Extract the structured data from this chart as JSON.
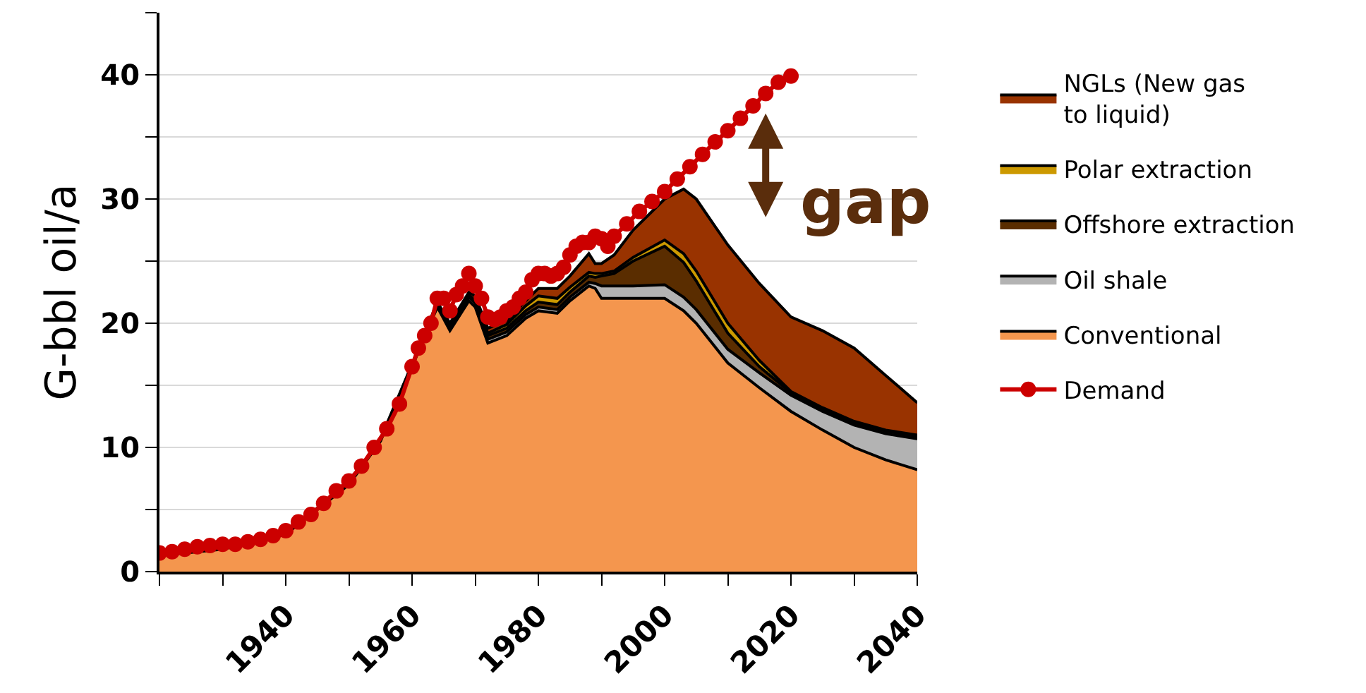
{
  "chart_data": {
    "type": "area",
    "stacked": true,
    "ylabel": "G-bbl oil/a",
    "x": [
      1920,
      1930,
      1940,
      1950,
      1955,
      1960,
      1964,
      1966,
      1969,
      1970,
      1972,
      1975,
      1978,
      1980,
      1983,
      1985,
      1988,
      1989,
      1990,
      1992,
      1995,
      2000,
      2003,
      2005,
      2010,
      2015,
      2020,
      2025,
      2030,
      2035,
      2040
    ],
    "series": [
      {
        "name": "Conventional",
        "color": "#f4964e",
        "values": [
          1.3,
          1.8,
          3.0,
          7.0,
          10.5,
          16.5,
          21.3,
          19.4,
          21.8,
          21.3,
          18.4,
          19,
          20.4,
          21,
          20.8,
          21.8,
          23,
          22.8,
          22,
          22,
          22,
          22,
          21,
          20,
          16.8,
          14.8,
          12.9,
          11.4,
          10,
          9,
          8.2
        ]
      },
      {
        "name": "Oil shale",
        "color": "#b3b3b3",
        "values": [
          0.1,
          0.1,
          0.1,
          0.1,
          0.1,
          0.1,
          0.2,
          0.2,
          0.3,
          0.3,
          0.3,
          0.3,
          0.3,
          0.3,
          0.3,
          0.3,
          0.3,
          0.4,
          1.0,
          1.0,
          1.0,
          1.1,
          1.1,
          1.1,
          1.1,
          1.2,
          1.3,
          1.5,
          1.8,
          2.1,
          2.5
        ]
      },
      {
        "name": "Offshore extraction",
        "color": "#5a2d00",
        "values": [
          0,
          0,
          0,
          0,
          0,
          0,
          0.1,
          0.1,
          0.2,
          0.2,
          0.3,
          0.3,
          0.3,
          0.4,
          0.4,
          0.4,
          0.5,
          0.5,
          0.8,
          1.0,
          2.0,
          3.1,
          2.8,
          2.3,
          1.3,
          0.5,
          0.2,
          0.2,
          0.2,
          0.2,
          0.2
        ]
      },
      {
        "name": "Polar extraction",
        "color": "#cc9900",
        "values": [
          0,
          0,
          0,
          0,
          0,
          0,
          0,
          0,
          0,
          0,
          0.2,
          0.3,
          0.4,
          0.5,
          0.5,
          0.4,
          0.3,
          0.3,
          0.2,
          0.2,
          0.3,
          0.5,
          0.7,
          0.8,
          0.8,
          0.5,
          0.1,
          0.1,
          0.1,
          0.1,
          0.1
        ]
      },
      {
        "name": "NGLs (New gas\nto liquid)",
        "color": "#993300",
        "values": [
          0,
          0,
          0,
          0,
          0.1,
          0.1,
          0.1,
          0.3,
          0.2,
          0.4,
          0.4,
          0.3,
          0.4,
          0.6,
          0.8,
          0.9,
          1.5,
          0.8,
          0.8,
          1.3,
          2.2,
          3.3,
          5.2,
          5.8,
          6.3,
          6.2,
          6.0,
          6.2,
          5.9,
          4.4,
          2.6
        ]
      },
      {
        "name": "Demand",
        "type": "line",
        "color": "#cc0000",
        "marker": "circle",
        "x": [
          1920,
          1922,
          1924,
          1926,
          1928,
          1930,
          1932,
          1934,
          1936,
          1938,
          1940,
          1942,
          1944,
          1946,
          1948,
          1950,
          1952,
          1954,
          1956,
          1958,
          1960,
          1961,
          1962,
          1963,
          1964,
          1965,
          1966,
          1967,
          1968,
          1969,
          1970,
          1971,
          1972,
          1973,
          1974,
          1975,
          1976,
          1977,
          1978,
          1979,
          1980,
          1981,
          1982,
          1983,
          1984,
          1985,
          1986,
          1987,
          1988,
          1989,
          1990,
          1991,
          1992,
          1994,
          1996,
          1998,
          2000,
          2002,
          2004,
          2006,
          2008,
          2010,
          2012,
          2014,
          2016,
          2018,
          2020
        ],
        "values": [
          1.5,
          1.6,
          1.8,
          2.0,
          2.1,
          2.2,
          2.2,
          2.4,
          2.6,
          2.9,
          3.3,
          4.0,
          4.6,
          5.5,
          6.5,
          7.3,
          8.5,
          10,
          11.5,
          13.5,
          16.5,
          18,
          19,
          20,
          22,
          22,
          21,
          22.3,
          23,
          24,
          23,
          22,
          20.5,
          20.3,
          20.5,
          21,
          21.3,
          22,
          22.5,
          23.5,
          24,
          24,
          23.8,
          24,
          24.5,
          25.5,
          26.2,
          26.5,
          26.5,
          27,
          26.8,
          26.2,
          27,
          28,
          29,
          29.8,
          30.6,
          31.6,
          32.6,
          33.6,
          34.6,
          35.5,
          36.5,
          37.5,
          38.5,
          39.4,
          39.9
        ]
      }
    ],
    "xlim": [
      1920,
      2040
    ],
    "xticks": [
      {
        "value": 1920,
        "label": null
      },
      {
        "value": 1930,
        "label": null
      },
      1940,
      {
        "value": 1950,
        "label": null
      },
      1960,
      {
        "value": 1970,
        "label": null
      },
      1980,
      {
        "value": 1990,
        "label": null
      },
      2000,
      {
        "value": 2010,
        "label": null
      },
      2020,
      {
        "value": 2030,
        "label": null
      },
      2040
    ],
    "ylim": [
      0,
      45
    ],
    "yticks": [
      0,
      {
        "value": 5,
        "label": null
      },
      10,
      {
        "value": 15,
        "label": null
      },
      20,
      {
        "value": 25,
        "label": null
      },
      30,
      {
        "value": 35,
        "label": null
      },
      40,
      {
        "value": 45,
        "label": null
      }
    ],
    "grid": "y",
    "legend": "right",
    "annotations": [
      "gap"
    ]
  }
}
